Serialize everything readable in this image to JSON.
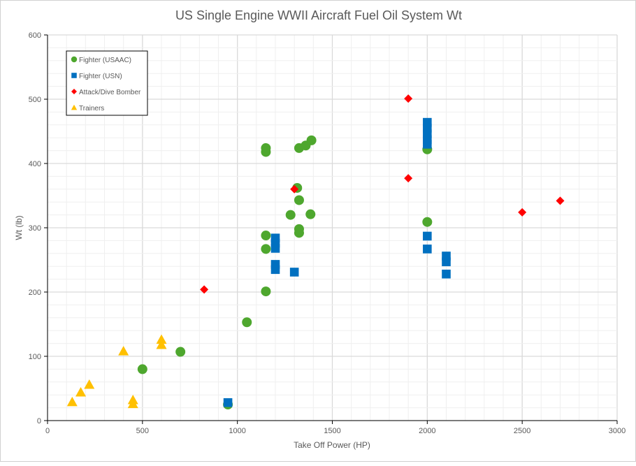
{
  "chart_data": {
    "type": "scatter",
    "title": "US Single Engine WWII Aircraft Fuel Oil System  Wt",
    "xlabel": "Take Off Power (HP)",
    "ylabel": "Wt (lb)",
    "xlim": [
      0,
      3000
    ],
    "ylim": [
      0,
      600
    ],
    "xticks": [
      0,
      500,
      1000,
      1500,
      2000,
      2500,
      3000
    ],
    "yticks": [
      0,
      100,
      200,
      300,
      400,
      500,
      600
    ],
    "grid": true,
    "legend_position": "top-left",
    "series": [
      {
        "name": "Fighter (USAAC)",
        "marker": "circle",
        "color": "#4ea72e",
        "points": [
          [
            950,
            25
          ],
          [
            500,
            80
          ],
          [
            700,
            107
          ],
          [
            1050,
            153
          ],
          [
            1150,
            201
          ],
          [
            1150,
            267
          ],
          [
            1150,
            288
          ],
          [
            1150,
            418
          ],
          [
            1150,
            424
          ],
          [
            1325,
            292
          ],
          [
            1325,
            298
          ],
          [
            1280,
            320
          ],
          [
            1385,
            321
          ],
          [
            1325,
            343
          ],
          [
            1315,
            362
          ],
          [
            1325,
            424
          ],
          [
            1360,
            428
          ],
          [
            1390,
            436
          ],
          [
            2000,
            422
          ],
          [
            2000,
            309
          ]
        ]
      },
      {
        "name": "Fighter (USN)",
        "marker": "square",
        "color": "#0070c0",
        "points": [
          [
            950,
            28
          ],
          [
            1200,
            284
          ],
          [
            1200,
            276
          ],
          [
            1200,
            268
          ],
          [
            1200,
            243
          ],
          [
            1200,
            235
          ],
          [
            1300,
            231
          ],
          [
            2000,
            464
          ],
          [
            2000,
            455
          ],
          [
            2000,
            446
          ],
          [
            2000,
            437
          ],
          [
            2000,
            430
          ],
          [
            2000,
            287
          ],
          [
            2000,
            267
          ],
          [
            2100,
            256
          ],
          [
            2100,
            247
          ],
          [
            2100,
            228
          ]
        ]
      },
      {
        "name": "Attack/Dive Bomber",
        "marker": "diamond",
        "color": "#ff0000",
        "points": [
          [
            825,
            204
          ],
          [
            1300,
            360
          ],
          [
            1900,
            501
          ],
          [
            1900,
            377
          ],
          [
            2500,
            324
          ],
          [
            2700,
            342
          ]
        ]
      },
      {
        "name": "Trainers",
        "marker": "triangle",
        "color": "#ffc000",
        "points": [
          [
            130,
            29
          ],
          [
            175,
            44
          ],
          [
            220,
            56
          ],
          [
            400,
            108
          ],
          [
            450,
            32
          ],
          [
            450,
            26
          ],
          [
            600,
            126
          ],
          [
            600,
            118
          ]
        ]
      }
    ]
  }
}
